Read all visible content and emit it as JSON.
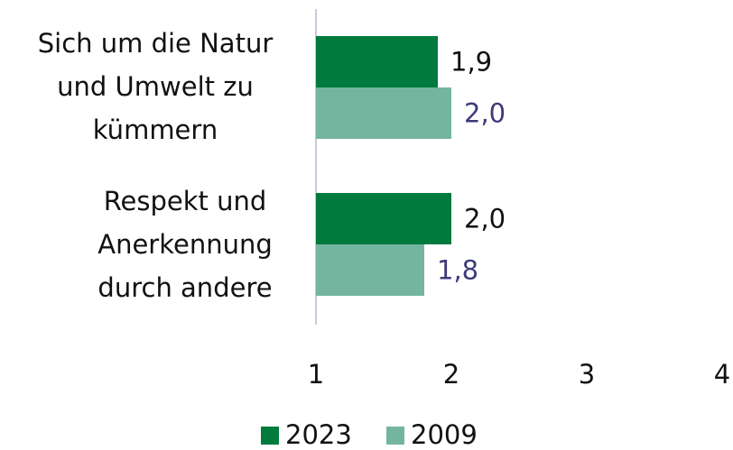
{
  "chart_data": {
    "type": "hbar",
    "categories": [
      "Sich um die Natur\nund Umwelt zu\nkümmern",
      "Respekt und\nAnerkennung\ndurch andere"
    ],
    "series": [
      {
        "name": "2023",
        "color": "#007a3d",
        "label_color": "#111111",
        "values": [
          1.9,
          2.0
        ],
        "value_labels": [
          "1,9",
          "2,0"
        ]
      },
      {
        "name": "2009",
        "color": "#74b59f",
        "label_color": "#3d3a7a",
        "values": [
          2.0,
          1.8
        ],
        "value_labels": [
          "2,0",
          "1,8"
        ]
      }
    ],
    "xlim": [
      1,
      4
    ],
    "xticks": [
      1,
      2,
      3,
      4
    ],
    "grid": false,
    "legend": "bottom"
  }
}
